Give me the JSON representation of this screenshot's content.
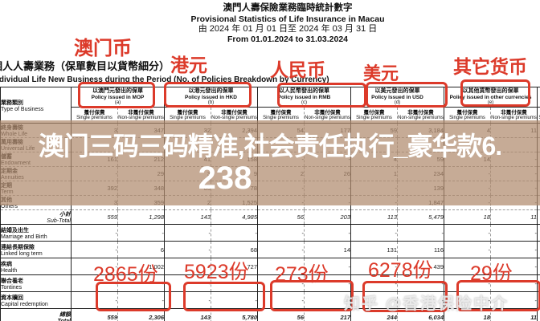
{
  "title": {
    "zh": "澳門人壽保險業務臨時統計數字",
    "en": "Provisional Statistics of Life Insurance in Macau",
    "date_zh": "由 2024 年 01 月 01 日至 2024 年 03 月 31 日",
    "date_en": "From 01.01.2024 to 31.03.2024"
  },
  "section": {
    "zh": "個人人壽業務（保單數目以貨幣細分）",
    "en_pre": "Individual Life New Business during the Period (",
    "en_underlined": "No. of Policies",
    "en_post": " Breakdown by Currency)"
  },
  "currencies": [
    "澳门币",
    "港元",
    "人民币",
    "美元",
    "其它货币"
  ],
  "table": {
    "corner": {
      "zh": "業務類別",
      "en": "Type of Business"
    },
    "groups": [
      {
        "zh": "以澳門元發出的保單",
        "en": "Policy issued in MOP",
        "letter": "(a)"
      },
      {
        "zh": "以港元發出的保單",
        "en": "Policy issued in HKD",
        "letter": "(b)"
      },
      {
        "zh": "以人民幣發出的保單",
        "en": "Policy issued in RMB",
        "letter": "(c)"
      },
      {
        "zh": "以美元發出的保單",
        "en": "Policy issued in USD",
        "letter": "(d)"
      },
      {
        "zh": "以其他貨幣發出的保單",
        "en": "Policy issued in other currencies",
        "letter": "(e)"
      }
    ],
    "subcols": {
      "single_zh": "躉付保費",
      "single_en": "Single premiums",
      "nonsingle_zh": "非躉付保費",
      "nonsingle_en": "Non-single premiums"
    },
    "rows": [
      {
        "zh": "終身壽險",
        "en": "Whole Life",
        "cls": "upper",
        "values": [
          "3",
          "347",
          "32",
          "2,394",
          "54",
          "177",
          "59",
          "3,184",
          "4",
          "11"
        ]
      },
      {
        "zh": "萬用壽險",
        "en": "Universal Life",
        "cls": "upper",
        "values": [
          "",
          "",
          "",
          "",
          "",
          "",
          "",
          "",
          "",
          ""
        ]
      },
      {
        "zh": "儲蓄",
        "en": "Endowment",
        "cls": "upper",
        "values": [
          "161",
          "212",
          "41",
          "158",
          "-",
          "-",
          "4",
          "59",
          "14",
          "-"
        ]
      },
      {
        "zh": "定期金",
        "en": "Annuities",
        "cls": "upper",
        "values": [
          "-",
          "29",
          "3",
          "9",
          "2",
          "26",
          "1",
          "234",
          "-",
          "-"
        ]
      },
      {
        "zh": "定期",
        "en": "Term",
        "cls": "upper",
        "values": [
          "392",
          "348",
          "65",
          "78",
          "-",
          "-",
          "-",
          "139",
          "-",
          "-"
        ]
      },
      {
        "zh": "其他",
        "en": "Others",
        "cls": "upper",
        "values": [
          "3",
          "359",
          "2",
          "1,525",
          "-",
          "-",
          "-",
          "1,847",
          "-",
          "-"
        ]
      },
      {
        "zh": "小計",
        "en": "Sub-Total",
        "cls": "subtotal",
        "right": true,
        "values": [
          "559",
          "1,298",
          "143",
          "4,985",
          "56",
          "203",
          "113",
          "5,479",
          "18",
          "11"
        ]
      },
      {
        "zh": "結婚及出生",
        "en": "Marriage and Birth",
        "cls": "lower",
        "values": [
          "-",
          "-",
          "-",
          "-",
          "-",
          "-",
          "-",
          "-",
          "-",
          "-"
        ]
      },
      {
        "zh": "連結長期保險",
        "en": "Linked long term",
        "cls": "lower",
        "values": [
          "-",
          "6",
          "-",
          "68",
          "-",
          "14",
          "131",
          "116",
          "-",
          "-"
        ]
      },
      {
        "zh": "疾病",
        "en": "Health",
        "cls": "lower",
        "values": [
          "-",
          "1,002",
          "-",
          "727",
          "-",
          "-",
          "-",
          "439",
          "-",
          "-"
        ]
      },
      {
        "zh": "聯合養老",
        "en": "Tontines",
        "cls": "lower",
        "values": [
          "-",
          "-",
          "-",
          "-",
          "-",
          "-",
          "-",
          "-",
          "-",
          "-"
        ]
      },
      {
        "zh": "資本贖回",
        "en": "Capital redemption",
        "cls": "lower",
        "values": [
          "-",
          "-",
          "-",
          "-",
          "-",
          "-",
          "-",
          "-",
          "-",
          "-"
        ]
      },
      {
        "zh": "總額",
        "en": "Total",
        "cls": "total",
        "right": true,
        "values": [
          "559",
          "2,306",
          "143",
          "5,780",
          "56",
          "217",
          "244",
          "6,034",
          "18",
          "11"
        ]
      }
    ]
  },
  "overlay": {
    "line1": "澳门三码三码精准,社会责任执行_豪华款6.",
    "line2": "238"
  },
  "annotations": {
    "counts": [
      "2865份",
      "5923份",
      "273份",
      "6278份",
      "29份"
    ]
  },
  "watermark": {
    "text": "知乎 @香港保险中介"
  },
  "colors": {
    "annotation_red": "#dc3a2a",
    "band_tan": "rgba(176,138,110,0.72)",
    "text_white": "#ffffff"
  }
}
